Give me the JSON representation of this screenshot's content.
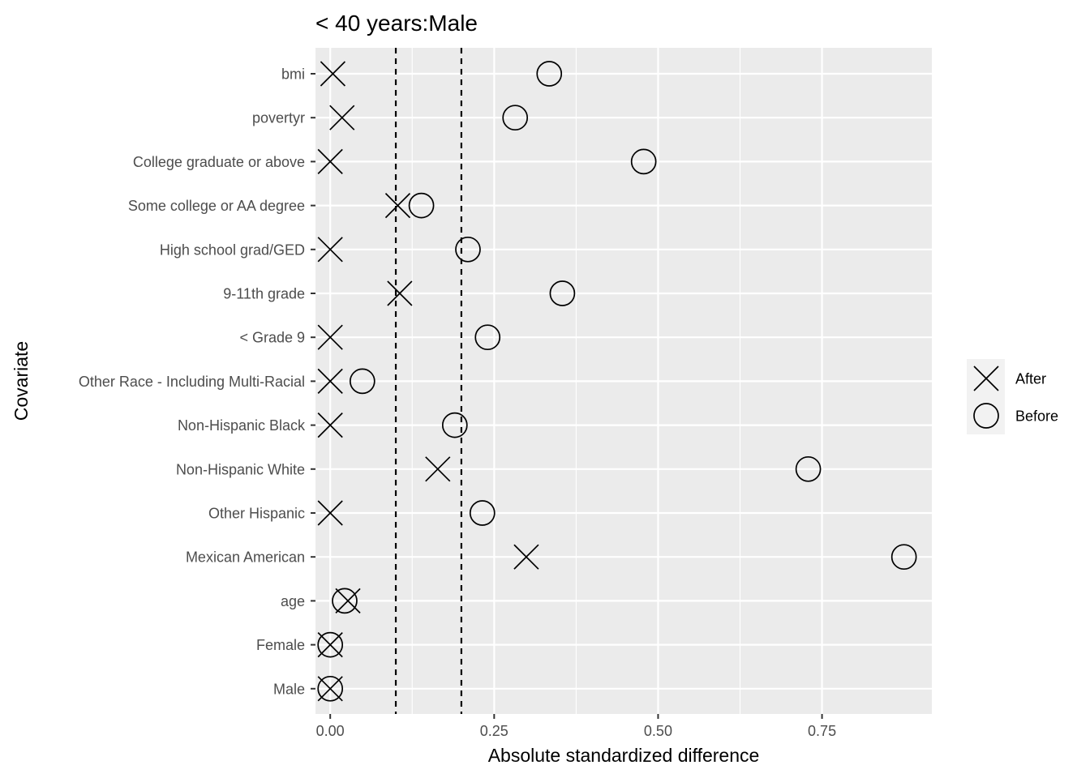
{
  "chart_data": {
    "type": "scatter",
    "title": "< 40 years:Male",
    "xlabel": "Absolute standardized difference",
    "ylabel": "Covariate",
    "xlim": [
      -0.0225,
      0.9175
    ],
    "x_ticks": [
      0.0,
      0.25,
      0.5,
      0.75
    ],
    "x_tick_labels": [
      "0.00",
      "0.25",
      "0.50",
      "0.75"
    ],
    "grid": true,
    "reference_lines": [
      0.1,
      0.2
    ],
    "legend_position": "right",
    "categories": [
      "bmi",
      "povertyr",
      "College graduate or above",
      "Some college or AA degree",
      "High school grad/GED",
      "9-11th grade",
      "< Grade 9",
      "Other Race - Including Multi-Racial",
      "Non-Hispanic Black",
      "Non-Hispanic White",
      "Other Hispanic",
      "Mexican American",
      "age",
      "Female",
      "Male"
    ],
    "series": [
      {
        "name": "After",
        "marker": "x",
        "values": [
          0.004,
          0.018,
          0.0,
          0.103,
          0.0,
          0.106,
          0.0,
          0.0,
          0.0,
          0.164,
          0.0,
          0.299,
          0.027,
          0.0,
          0.0
        ]
      },
      {
        "name": "Before",
        "marker": "circle",
        "values": [
          0.334,
          0.282,
          0.478,
          0.139,
          0.21,
          0.354,
          0.24,
          0.049,
          0.19,
          0.729,
          0.232,
          0.875,
          0.022,
          0.0,
          0.0
        ]
      }
    ]
  },
  "colors": {
    "panel_background": "#ebebeb",
    "grid_major": "#ffffff",
    "marker": "#000000",
    "reference_line": "#000000"
  }
}
